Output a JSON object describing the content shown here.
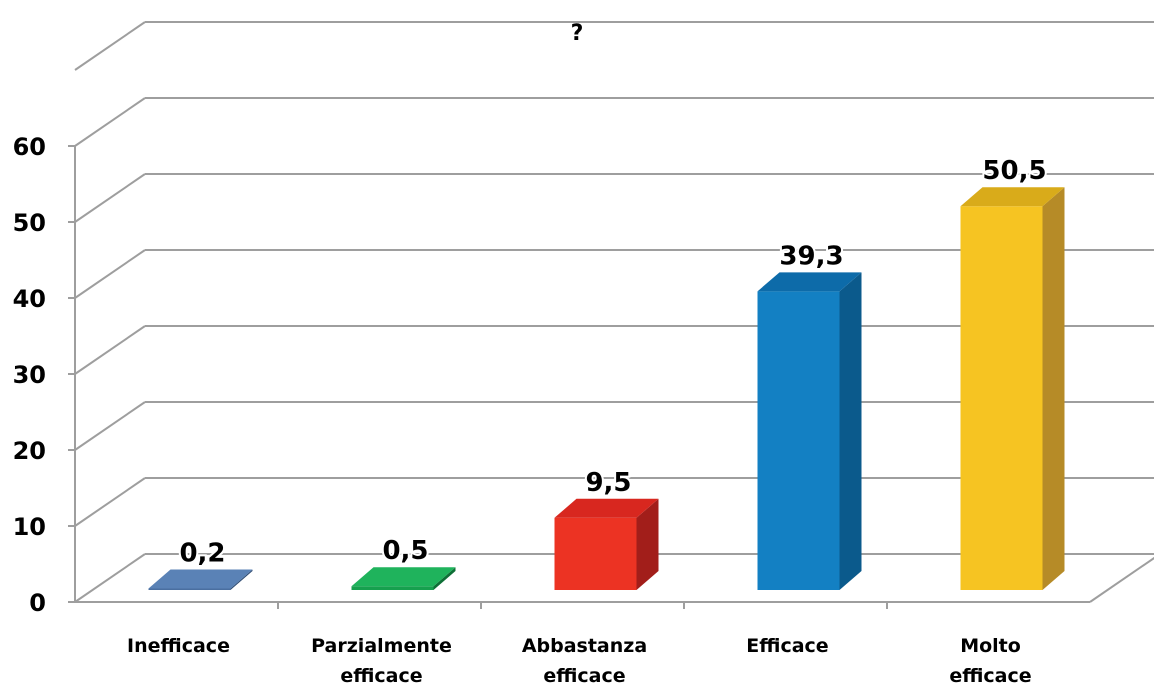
{
  "chart_data": {
    "type": "bar",
    "title": "?",
    "categories": [
      "Inefficace",
      "Parzialmente efficace",
      "Abbastanza efficace",
      "Efficace",
      "Molto efficace"
    ],
    "values": [
      0.2,
      0.5,
      9.5,
      39.3,
      50.5
    ],
    "data_labels": [
      "0,2",
      "0,5",
      "9,5",
      "39,3",
      "50,5"
    ],
    "ylim": [
      0,
      60
    ],
    "yticks": [
      0,
      10,
      20,
      30,
      40,
      50,
      60
    ],
    "grid": true,
    "style": "3d-column",
    "colors": [
      "#4a6fa0",
      "#16a04e",
      "#ec3323",
      "#1380c3",
      "#f6c422"
    ],
    "side_colors": [
      "#2f4c73",
      "#0e6f36",
      "#a21e1a",
      "#0b5a8c",
      "#b68b27"
    ],
    "top_colors": [
      "#5a82b6",
      "#1fb35c",
      "#d8271f",
      "#0d6ba9",
      "#d9ab1a"
    ]
  }
}
